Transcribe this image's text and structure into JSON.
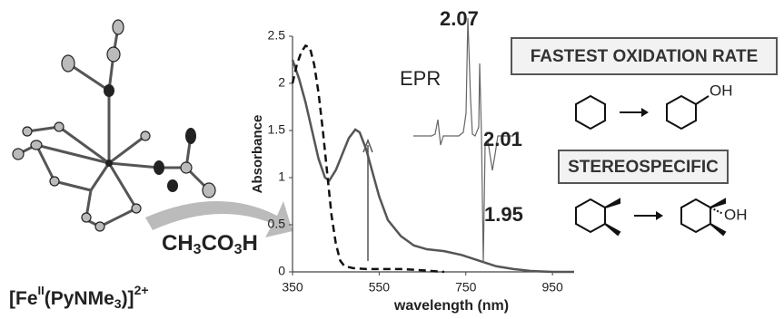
{
  "chart_data": {
    "type": "line",
    "xlabel": "wavelength (nm)",
    "ylabel": "Absorbance",
    "xlim": [
      350,
      1000
    ],
    "xticks": [
      350,
      550,
      750,
      950
    ],
    "ylim": [
      0,
      2.5
    ],
    "yticks": [
      0,
      0.5,
      1,
      1.5,
      2,
      2.5
    ],
    "series": [
      {
        "color": "#555555",
        "dash": false,
        "x": [
          350,
          365,
          380,
          395,
          410,
          425,
          435,
          450,
          465,
          480,
          495,
          505,
          520,
          535,
          550,
          570,
          600,
          630,
          660,
          700,
          740,
          780,
          820,
          860,
          900,
          950,
          1000
        ],
        "values": [
          2.25,
          2.05,
          1.8,
          1.5,
          1.2,
          1.0,
          0.97,
          1.08,
          1.25,
          1.42,
          1.51,
          1.48,
          1.3,
          1.05,
          0.8,
          0.55,
          0.38,
          0.28,
          0.24,
          0.22,
          0.18,
          0.12,
          0.06,
          0.03,
          0.01,
          0.0,
          0.0
        ]
      },
      {
        "color": "#111111",
        "dash": true,
        "x": [
          350,
          360,
          370,
          380,
          390,
          400,
          410,
          420,
          430,
          440,
          450,
          460,
          470,
          490,
          520,
          560,
          600,
          640,
          670,
          700
        ],
        "values": [
          2.0,
          2.2,
          2.33,
          2.4,
          2.38,
          2.2,
          1.9,
          1.5,
          1.05,
          0.6,
          0.3,
          0.12,
          0.06,
          0.04,
          0.03,
          0.03,
          0.03,
          0.02,
          0.01,
          0.0
        ]
      }
    ]
  },
  "epr": {
    "title": "EPR",
    "g_labels": [
      "2.07",
      "2.01",
      "1.95"
    ]
  },
  "complex_label": [
    "[Fe",
    "II",
    "(PyNMe",
    "3",
    ")]",
    "2+"
  ],
  "reagent": [
    "CH",
    "3",
    "CO",
    "3",
    "H"
  ],
  "panels": [
    {
      "title": "FASTEST OXIDATION RATE",
      "product_group": "OH"
    },
    {
      "title": "STEREOSPECIFIC",
      "product_group": "OH"
    }
  ]
}
